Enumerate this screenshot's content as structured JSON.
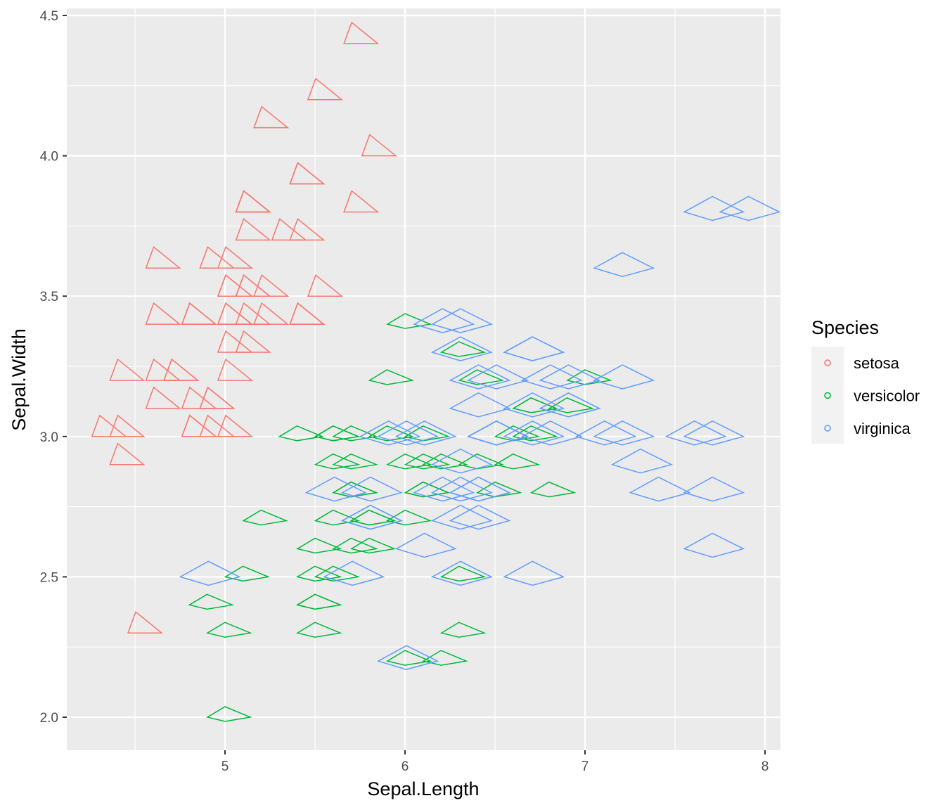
{
  "chart_data": {
    "type": "scatter",
    "title": "",
    "xlabel": "Sepal.Length",
    "ylabel": "Sepal.Width",
    "xlim": [
      4.1,
      8.08
    ],
    "ylim": [
      1.88,
      4.52
    ],
    "xticks": [
      5,
      6,
      7,
      8
    ],
    "yticks": [
      "2.0",
      "2.5",
      "3.0",
      "3.5",
      "4.0",
      "4.5"
    ],
    "grid": true,
    "legend": {
      "title": "Species",
      "placement": "right"
    },
    "series": [
      {
        "name": "setosa",
        "color": "#F8766D",
        "shape": "triangle",
        "points": [
          [
            5.1,
            3.5
          ],
          [
            4.9,
            3.0
          ],
          [
            4.7,
            3.2
          ],
          [
            4.6,
            3.1
          ],
          [
            5.0,
            3.6
          ],
          [
            5.4,
            3.9
          ],
          [
            4.6,
            3.4
          ],
          [
            5.0,
            3.4
          ],
          [
            4.4,
            2.9
          ],
          [
            4.9,
            3.1
          ],
          [
            5.4,
            3.7
          ],
          [
            4.8,
            3.4
          ],
          [
            4.8,
            3.0
          ],
          [
            4.3,
            3.0
          ],
          [
            5.8,
            4.0
          ],
          [
            5.7,
            4.4
          ],
          [
            5.4,
            3.9
          ],
          [
            5.1,
            3.5
          ],
          [
            5.7,
            3.8
          ],
          [
            5.1,
            3.8
          ],
          [
            5.4,
            3.4
          ],
          [
            5.1,
            3.7
          ],
          [
            4.6,
            3.6
          ],
          [
            5.1,
            3.3
          ],
          [
            4.8,
            3.4
          ],
          [
            5.0,
            3.0
          ],
          [
            5.0,
            3.4
          ],
          [
            5.2,
            3.5
          ],
          [
            5.2,
            3.4
          ],
          [
            4.7,
            3.2
          ],
          [
            4.8,
            3.1
          ],
          [
            5.4,
            3.4
          ],
          [
            5.2,
            4.1
          ],
          [
            5.5,
            4.2
          ],
          [
            4.9,
            3.1
          ],
          [
            5.0,
            3.2
          ],
          [
            5.5,
            3.5
          ],
          [
            4.9,
            3.6
          ],
          [
            4.4,
            3.0
          ],
          [
            5.1,
            3.4
          ],
          [
            5.0,
            3.5
          ],
          [
            4.5,
            2.3
          ],
          [
            4.4,
            3.2
          ],
          [
            5.0,
            3.5
          ],
          [
            5.1,
            3.8
          ],
          [
            4.8,
            3.0
          ],
          [
            5.1,
            3.8
          ],
          [
            4.6,
            3.2
          ],
          [
            5.3,
            3.7
          ],
          [
            5.0,
            3.3
          ]
        ]
      },
      {
        "name": "versicolor",
        "color": "#00BA38",
        "shape": "diamond",
        "points": [
          [
            7.0,
            3.2
          ],
          [
            6.4,
            3.2
          ],
          [
            6.9,
            3.1
          ],
          [
            5.5,
            2.3
          ],
          [
            6.5,
            2.8
          ],
          [
            5.7,
            2.8
          ],
          [
            6.3,
            3.3
          ],
          [
            4.9,
            2.4
          ],
          [
            6.6,
            2.9
          ],
          [
            5.2,
            2.7
          ],
          [
            5.0,
            2.0
          ],
          [
            5.9,
            3.0
          ],
          [
            6.0,
            2.2
          ],
          [
            6.1,
            2.9
          ],
          [
            5.6,
            2.9
          ],
          [
            6.7,
            3.1
          ],
          [
            5.6,
            3.0
          ],
          [
            5.8,
            2.7
          ],
          [
            6.2,
            2.2
          ],
          [
            5.6,
            2.5
          ],
          [
            5.9,
            3.2
          ],
          [
            6.1,
            2.8
          ],
          [
            6.3,
            2.5
          ],
          [
            6.1,
            2.8
          ],
          [
            6.4,
            2.9
          ],
          [
            6.6,
            3.0
          ],
          [
            6.8,
            2.8
          ],
          [
            6.7,
            3.0
          ],
          [
            6.0,
            2.9
          ],
          [
            5.7,
            2.6
          ],
          [
            5.5,
            2.4
          ],
          [
            5.5,
            2.4
          ],
          [
            5.8,
            2.7
          ],
          [
            6.0,
            2.7
          ],
          [
            5.4,
            3.0
          ],
          [
            6.0,
            3.4
          ],
          [
            6.7,
            3.1
          ],
          [
            6.3,
            2.3
          ],
          [
            5.6,
            3.0
          ],
          [
            5.5,
            2.5
          ],
          [
            5.5,
            2.6
          ],
          [
            6.1,
            3.0
          ],
          [
            5.8,
            2.6
          ],
          [
            5.0,
            2.3
          ],
          [
            5.6,
            2.7
          ],
          [
            5.7,
            3.0
          ],
          [
            5.7,
            2.9
          ],
          [
            6.2,
            2.9
          ],
          [
            5.1,
            2.5
          ],
          [
            5.7,
            2.8
          ]
        ]
      },
      {
        "name": "virginica",
        "color": "#619CFF",
        "shape": "diamond-large",
        "points": [
          [
            6.3,
            3.3
          ],
          [
            5.8,
            2.7
          ],
          [
            7.1,
            3.0
          ],
          [
            6.3,
            2.9
          ],
          [
            6.5,
            3.0
          ],
          [
            7.6,
            3.0
          ],
          [
            4.9,
            2.5
          ],
          [
            7.3,
            2.9
          ],
          [
            6.7,
            2.5
          ],
          [
            7.2,
            3.6
          ],
          [
            6.5,
            3.2
          ],
          [
            6.4,
            2.7
          ],
          [
            6.8,
            3.0
          ],
          [
            5.7,
            2.5
          ],
          [
            5.8,
            2.8
          ],
          [
            6.4,
            3.2
          ],
          [
            6.5,
            3.0
          ],
          [
            7.7,
            3.8
          ],
          [
            7.7,
            2.6
          ],
          [
            6.0,
            2.2
          ],
          [
            6.9,
            3.2
          ],
          [
            5.6,
            2.8
          ],
          [
            7.7,
            2.8
          ],
          [
            6.3,
            2.7
          ],
          [
            6.7,
            3.3
          ],
          [
            7.2,
            3.2
          ],
          [
            6.2,
            2.8
          ],
          [
            6.1,
            3.0
          ],
          [
            6.4,
            2.8
          ],
          [
            7.2,
            3.0
          ],
          [
            7.4,
            2.8
          ],
          [
            7.9,
            3.8
          ],
          [
            6.4,
            2.8
          ],
          [
            6.3,
            2.8
          ],
          [
            6.1,
            2.6
          ],
          [
            7.7,
            3.0
          ],
          [
            6.3,
            3.4
          ],
          [
            6.4,
            3.1
          ],
          [
            6.0,
            3.0
          ],
          [
            6.9,
            3.1
          ],
          [
            6.7,
            3.1
          ],
          [
            6.9,
            3.1
          ],
          [
            5.8,
            2.7
          ],
          [
            6.8,
            3.2
          ],
          [
            6.7,
            3.3
          ],
          [
            6.7,
            3.0
          ],
          [
            6.3,
            2.5
          ],
          [
            6.5,
            3.0
          ],
          [
            6.2,
            3.4
          ],
          [
            5.9,
            3.0
          ]
        ]
      }
    ]
  }
}
